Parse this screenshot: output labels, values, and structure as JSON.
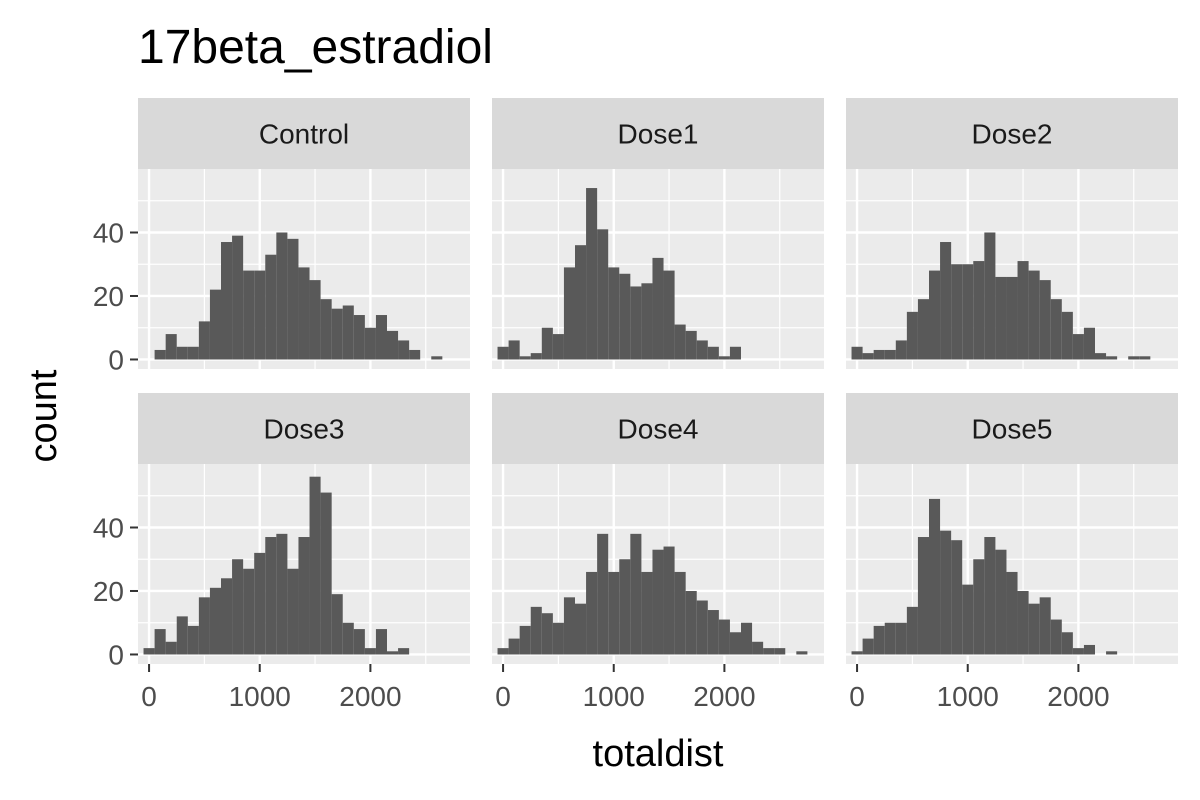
{
  "chart_data": {
    "type": "bar",
    "title": "17beta_estradiol",
    "xlabel": "totaldist",
    "ylabel": "count",
    "xlim": [
      -100,
      2900
    ],
    "ylim": [
      -3,
      60
    ],
    "x_ticks": [
      0,
      1000,
      2000
    ],
    "x_tick_labels": [
      "0",
      "1000",
      "2000"
    ],
    "y_ticks": [
      0,
      20,
      40
    ],
    "y_tick_labels": [
      "0",
      "20",
      "40"
    ],
    "bin_width": 100,
    "bin_starts": [
      0,
      100,
      200,
      300,
      400,
      500,
      600,
      700,
      800,
      900,
      1000,
      1100,
      1200,
      1300,
      1400,
      1500,
      1600,
      1700,
      1800,
      1900,
      2000,
      2100,
      2200,
      2300,
      2400,
      2500,
      2600,
      2700
    ],
    "grid": true,
    "colors": {
      "bar": "#595959",
      "panel_background": "#ebebeb",
      "strip_background": "#d9d9d9",
      "grid_line": "#ffffff"
    },
    "panels": [
      {
        "name": "Control",
        "counts": [
          0,
          3,
          8,
          4,
          4,
          12,
          22,
          37,
          39,
          28,
          28,
          33,
          40,
          38,
          29,
          25,
          19,
          16,
          17,
          14,
          10,
          14,
          9,
          6,
          3,
          0,
          1,
          0
        ]
      },
      {
        "name": "Dose1",
        "counts": [
          4,
          6,
          1,
          2,
          10,
          8,
          29,
          36,
          54,
          41,
          29,
          27,
          23,
          24,
          32,
          28,
          11,
          9,
          6,
          4,
          1,
          4,
          0,
          0,
          0,
          0,
          0,
          0
        ]
      },
      {
        "name": "Dose2",
        "counts": [
          4,
          2,
          3,
          3,
          6,
          15,
          19,
          28,
          37,
          30,
          30,
          31,
          40,
          26,
          26,
          31,
          28,
          25,
          19,
          15,
          8,
          10,
          2,
          1,
          0,
          1,
          1,
          0
        ]
      },
      {
        "name": "Dose3",
        "counts": [
          2,
          8,
          4,
          12,
          9,
          18,
          21,
          24,
          30,
          27,
          32,
          37,
          38,
          27,
          37,
          56,
          51,
          19,
          10,
          8,
          2,
          8,
          1,
          2,
          0,
          0,
          0,
          0
        ]
      },
      {
        "name": "Dose4",
        "counts": [
          2,
          5,
          9,
          15,
          13,
          10,
          18,
          16,
          26,
          38,
          26,
          30,
          38,
          26,
          33,
          34,
          26,
          20,
          17,
          14,
          11,
          7,
          10,
          4,
          2,
          2,
          0,
          1
        ]
      },
      {
        "name": "Dose5",
        "counts": [
          1,
          5,
          9,
          10,
          10,
          15,
          37,
          49,
          39,
          36,
          22,
          30,
          37,
          33,
          26,
          20,
          16,
          18,
          11,
          7,
          2,
          3,
          0,
          1,
          0,
          0,
          0,
          0
        ]
      }
    ]
  }
}
